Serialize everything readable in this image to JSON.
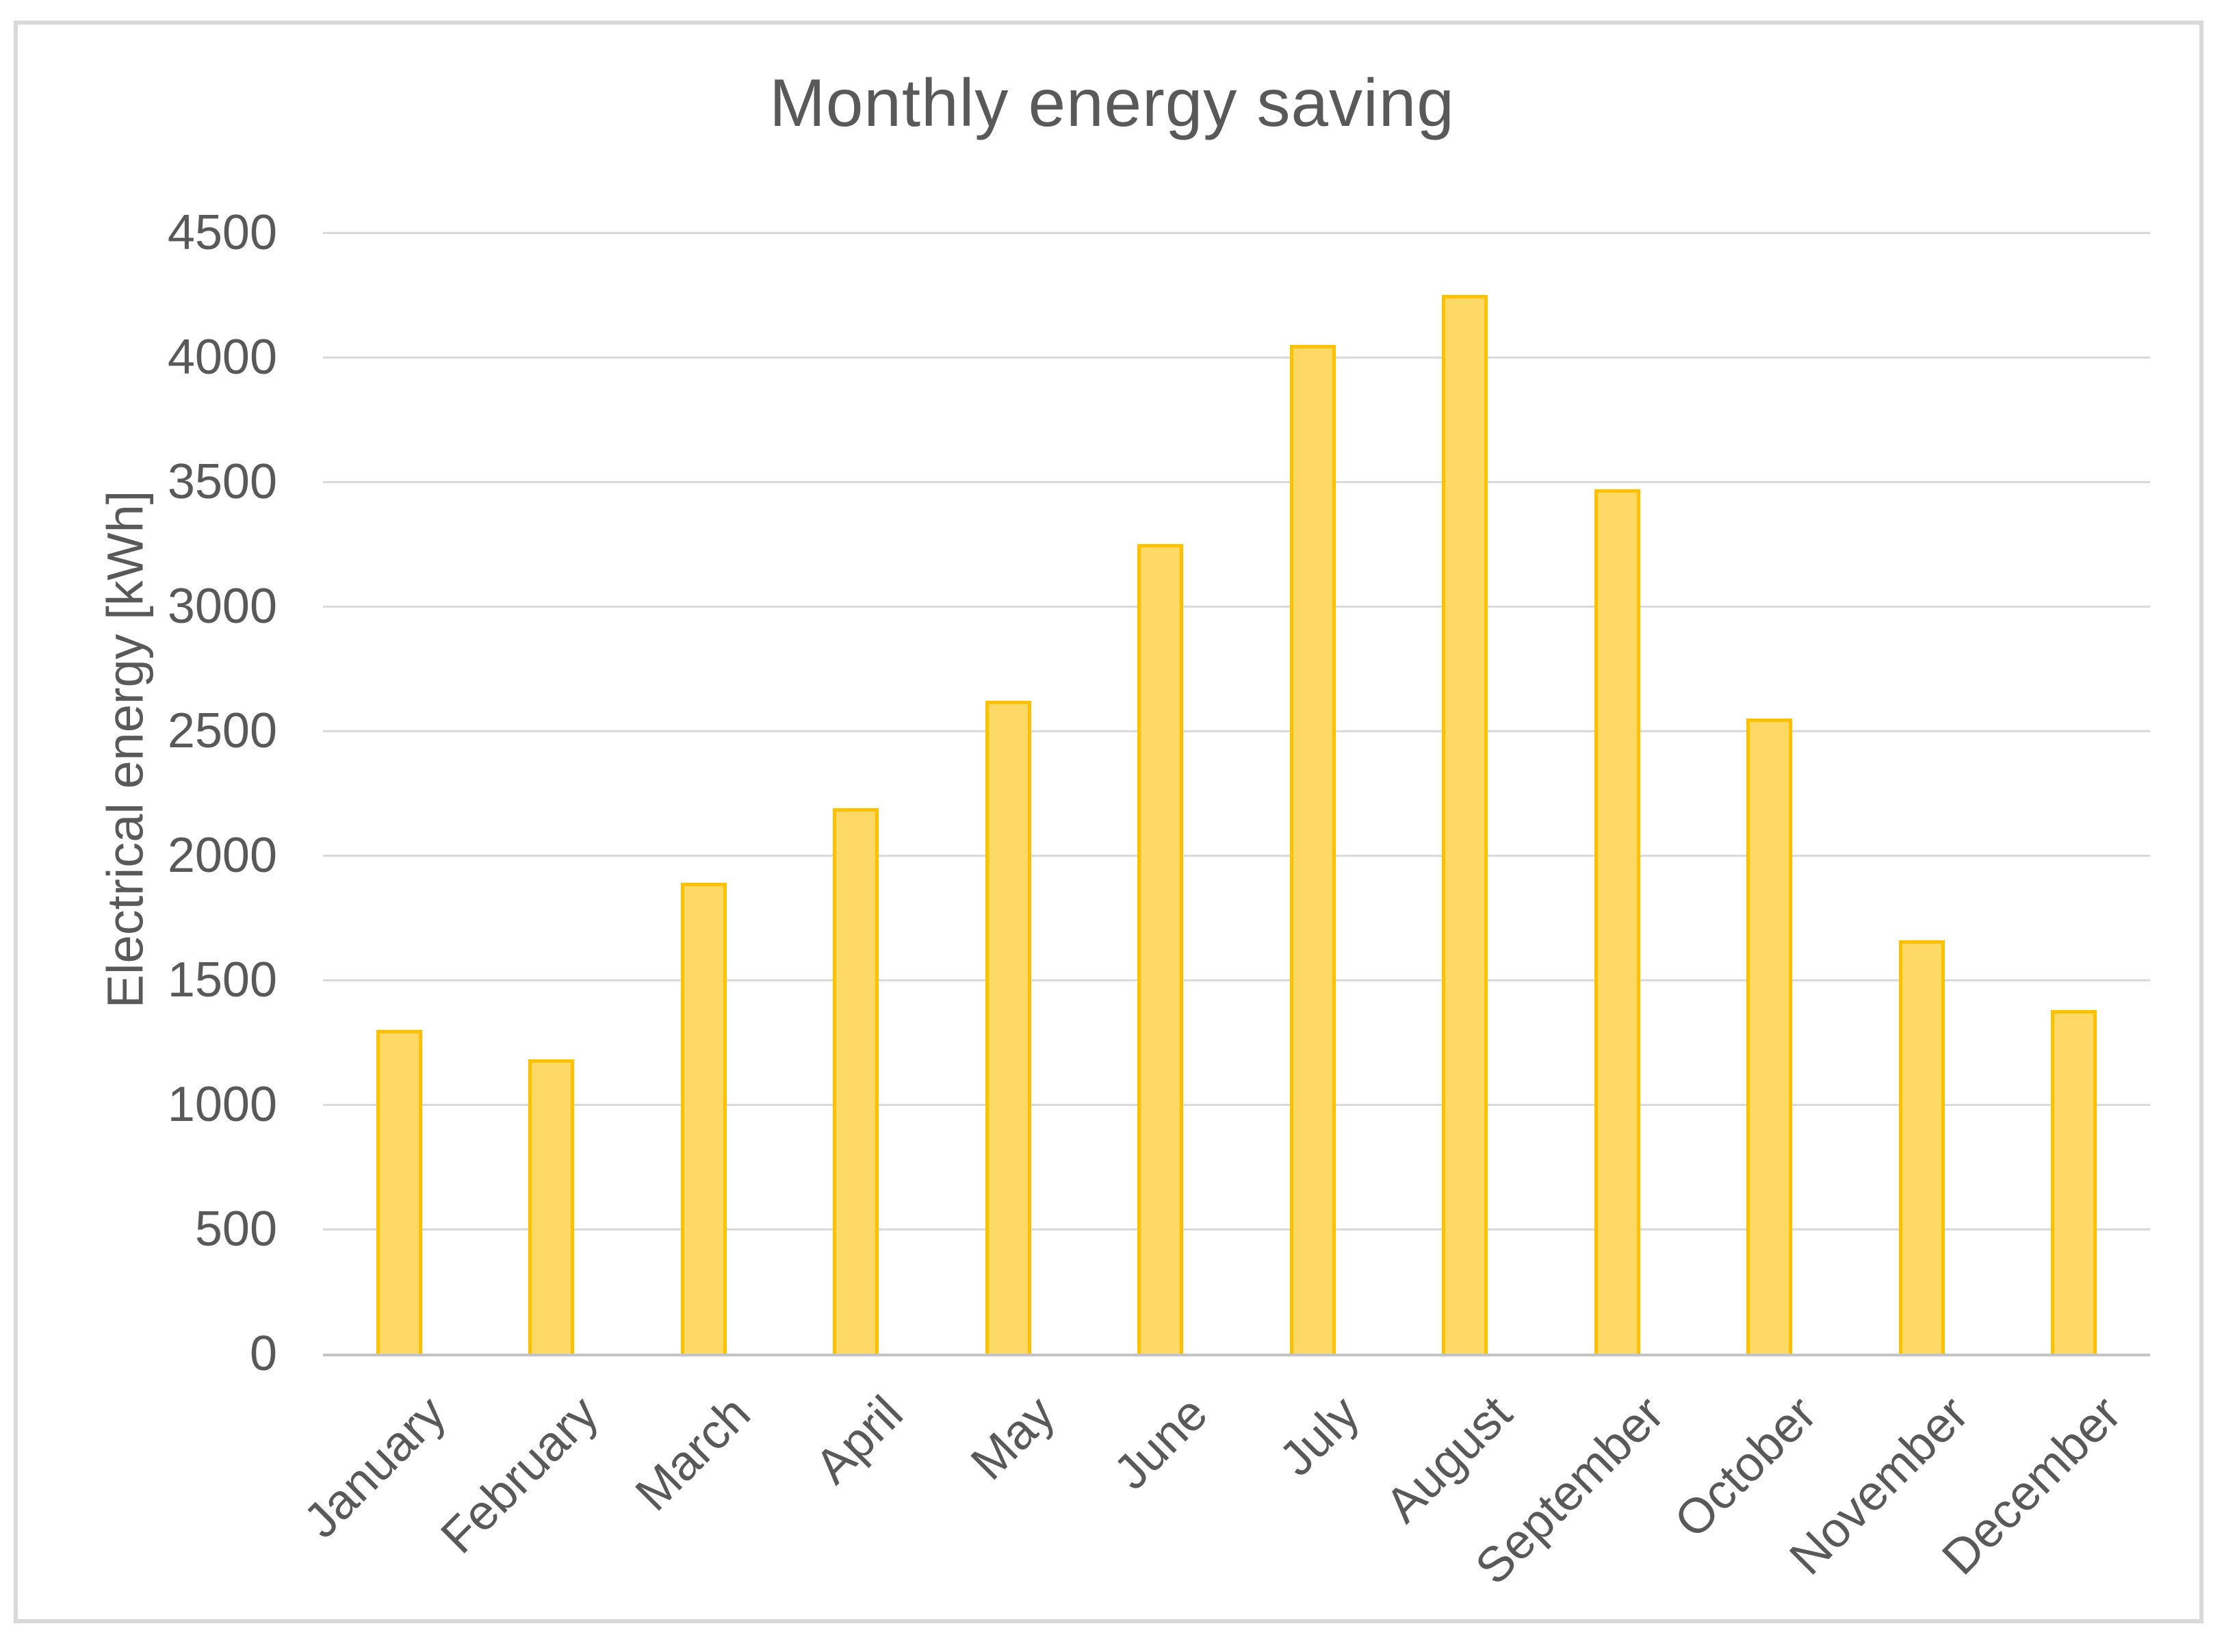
{
  "chart_data": {
    "type": "bar",
    "title": "Monthly energy saving",
    "xlabel": "",
    "ylabel": "Electrical energy [kWh]",
    "categories": [
      "January",
      "February",
      "March",
      "April",
      "May",
      "June",
      "July",
      "August",
      "September",
      "October",
      "November",
      "December"
    ],
    "values": [
      1300,
      1180,
      1890,
      2190,
      2620,
      3250,
      4050,
      4250,
      3470,
      2550,
      1660,
      1380
    ],
    "ylim": [
      0,
      4500
    ],
    "ytick_step": 500,
    "ytick_labels": [
      "0",
      "500",
      "1000",
      "1500",
      "2000",
      "2500",
      "3000",
      "3500",
      "4000",
      "4500"
    ],
    "grid": "horizontal-only",
    "legend": "none",
    "x_label_rotation_deg": 45
  },
  "colors": {
    "bar_fill": "#FFD965",
    "bar_border": "#FFC000",
    "gridline": "#DADADA",
    "axis_line": "#C4C4C4",
    "text": "#595959",
    "frame_border": "#D9D9D9",
    "background": "#FFFFFF"
  }
}
